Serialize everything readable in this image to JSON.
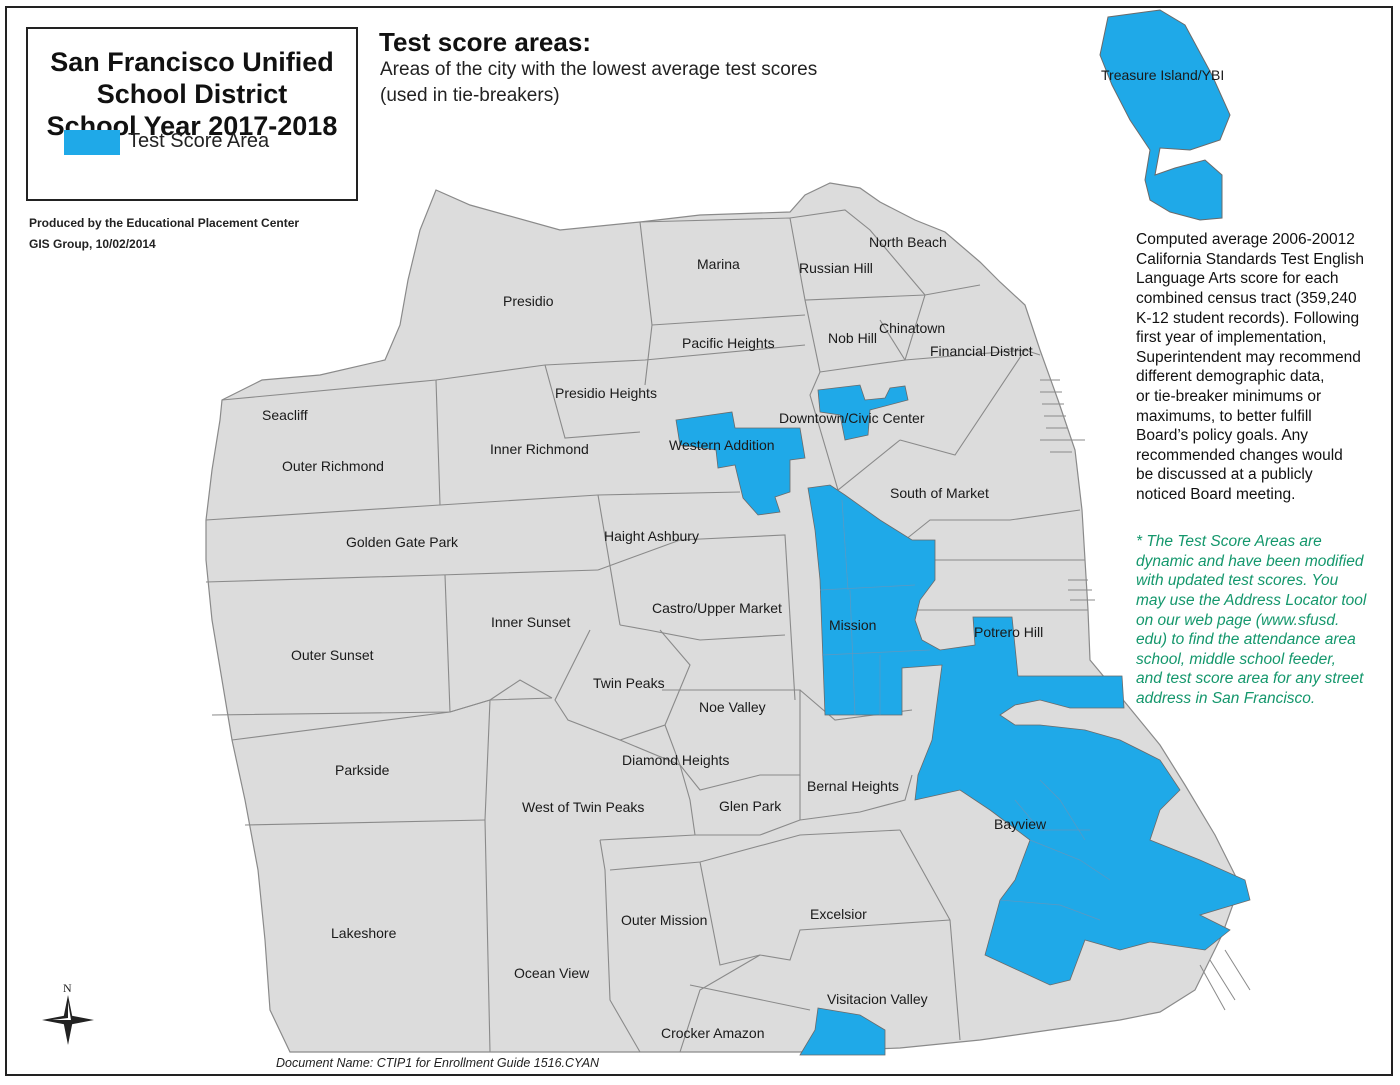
{
  "title": {
    "line1": "San Francisco Unified",
    "line2": "School District",
    "line3": "School Year 2017-2018"
  },
  "legend": {
    "label": "Test Score Area",
    "color": "#1fa9e8"
  },
  "produced": {
    "line1": "Produced by the Educational Placement Center",
    "line2": "GIS Group, 10/02/2014"
  },
  "heading": {
    "title": "Test score areas:",
    "sub1": "Areas of the city with the lowest average test scores",
    "sub2": "(used in tie-breakers)"
  },
  "description": {
    "l1": "Computed average 2006-20012",
    "l2": "California Standards Test English",
    "l3": "Language Arts score for each",
    "l4": "combined census tract (359,240",
    "l5": "K-12 student records). Following",
    "l6": "first year of implementation,",
    "l7": "Superintendent may recommend",
    "l8": "different demographic data,",
    "l9": "or tie-breaker minimums or",
    "l10": "maximums, to better fulfill",
    "l11": "Board’s policy goals. Any",
    "l12": "recommended changes would",
    "l13": "be discussed at a publicly",
    "l14": "noticed Board meeting."
  },
  "note": {
    "l1": "* The Test Score Areas are",
    "l2": "dynamic and have been modified",
    "l3": "with updated test scores.  You",
    "l4": "may use the Address Locator tool",
    "l5": "on our web page (www.sfusd.",
    "l6": "edu) to find the attendance area",
    "l7": "school, middle school feeder,",
    "l8": "and test score area for any street",
    "l9": "address in San Francisco."
  },
  "document_name": "Document Name: CTIP1 for Enrollment Guide 1516.CYAN",
  "compass_label": "N",
  "colors": {
    "land": "#dcdcdc",
    "border": "#8a8a8a",
    "highlight": "#1fa9e8",
    "note_text": "#14976c"
  },
  "neighborhoods": {
    "treasure_island": "Treasure Island/YBI",
    "north_beach": "North Beach",
    "marina": "Marina",
    "russian_hill": "Russian Hill",
    "presidio": "Presidio",
    "chinatown": "Chinatown",
    "pacific_heights": "Pacific Heights",
    "nob_hill": "Nob Hill",
    "financial_district": "Financial District",
    "presidio_heights": "Presidio Heights",
    "seacliff": "Seacliff",
    "downtown_civic_center": "Downtown/Civic Center",
    "western_addition": "Western Addition",
    "inner_richmond": "Inner Richmond",
    "outer_richmond": "Outer Richmond",
    "south_of_market": "South of Market",
    "haight_ashbury": "Haight Ashbury",
    "golden_gate_park": "Golden Gate Park",
    "castro_upper_market": "Castro/Upper Market",
    "inner_sunset": "Inner Sunset",
    "mission": "Mission",
    "potrero_hill": "Potrero Hill",
    "outer_sunset": "Outer Sunset",
    "twin_peaks": "Twin Peaks",
    "noe_valley": "Noe Valley",
    "diamond_heights": "Diamond Heights",
    "parkside": "Parkside",
    "bernal_heights": "Bernal Heights",
    "west_of_twin_peaks": "West of Twin Peaks",
    "glen_park": "Glen Park",
    "bayview": "Bayview",
    "excelsior": "Excelsior",
    "outer_mission": "Outer Mission",
    "lakeshore": "Lakeshore",
    "ocean_view": "Ocean View",
    "visitacion_valley": "Visitacion Valley",
    "crocker_amazon": "Crocker Amazon"
  }
}
